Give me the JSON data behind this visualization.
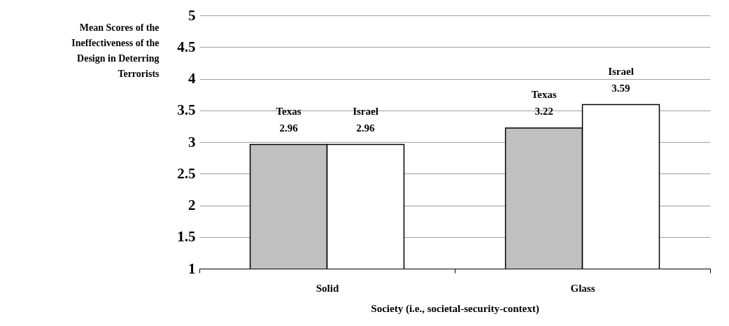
{
  "chart_data": {
    "type": "bar",
    "categories": [
      "Solid",
      "Glass"
    ],
    "series": [
      {
        "name": "Texas",
        "color": "#c0c0c0",
        "values": [
          2.96,
          3.22
        ]
      },
      {
        "name": "Israel",
        "color": "#ffffff",
        "values": [
          2.96,
          3.59
        ]
      }
    ],
    "xlabel": "Society (i.e., societal-security-context)",
    "ylabel": "Mean Scores of the Ineffectiveness of the Design in Deterring Terrorists",
    "ylim": [
      1,
      5
    ],
    "yticks": [
      1,
      1.5,
      2,
      2.5,
      3,
      3.5,
      4,
      4.5,
      5
    ],
    "grid": "y",
    "legend": false,
    "data_labels": true
  }
}
